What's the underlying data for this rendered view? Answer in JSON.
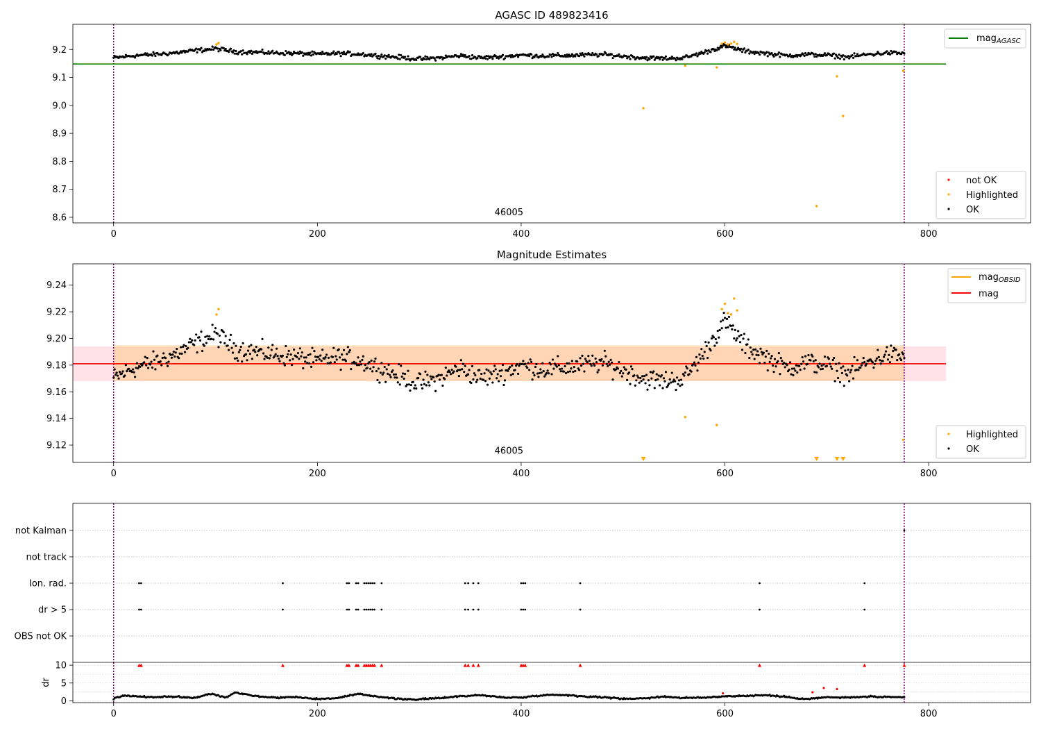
{
  "chart_data": [
    {
      "type": "scatter",
      "title": "AGASC ID 489823416",
      "xlim": [
        -40,
        900
      ],
      "ylim": [
        8.58,
        9.29
      ],
      "xticks": [
        0,
        200,
        400,
        600,
        800
      ],
      "yticks": [
        8.6,
        8.7,
        8.8,
        8.9,
        9.0,
        9.1,
        9.2
      ],
      "ytick_labels": [
        "8.6",
        "8.7",
        "8.8",
        "8.9",
        "9.0",
        "9.1",
        "9.2"
      ],
      "annotation": {
        "text": "46005",
        "x": 388,
        "y": 8.595
      },
      "vlines": [
        0,
        776
      ],
      "mag_agasc": {
        "y": 9.148,
        "x": [
          -40,
          817
        ]
      },
      "legend_lines": [
        {
          "label": "mag",
          "sub": "AGASC",
          "color": "#008000"
        }
      ],
      "legend_points": [
        {
          "label": "not OK",
          "color": "#ff0000"
        },
        {
          "label": "Highlighted",
          "color": "#ffa500"
        },
        {
          "label": "OK",
          "color": "#000000"
        }
      ],
      "series": [
        {
          "name": "Highlighted",
          "color": "#ffa500",
          "x": [
            101,
            103,
            520,
            561,
            592,
            597,
            600,
            603,
            606,
            609,
            612,
            690,
            710,
            716,
            775
          ],
          "y": [
            9.218,
            9.223,
            8.99,
            9.142,
            9.136,
            9.221,
            9.225,
            9.218,
            9.221,
            9.227,
            9.22,
            8.64,
            9.104,
            8.962,
            9.124
          ]
        },
        {
          "name": "OK",
          "color": "#000000",
          "trend_x": [
            0,
            20,
            40,
            60,
            80,
            100,
            120,
            140,
            160,
            180,
            200,
            220,
            240,
            260,
            280,
            300,
            320,
            340,
            360,
            380,
            400,
            420,
            440,
            460,
            480,
            500,
            520,
            540,
            560,
            580,
            600,
            620,
            640,
            660,
            680,
            700,
            720,
            740,
            760,
            776
          ],
          "trend_y": [
            9.17,
            9.178,
            9.182,
            9.188,
            9.196,
            9.203,
            9.192,
            9.19,
            9.188,
            9.186,
            9.183,
            9.186,
            9.184,
            9.178,
            9.172,
            9.166,
            9.17,
            9.178,
            9.17,
            9.174,
            9.18,
            9.177,
            9.178,
            9.18,
            9.182,
            9.176,
            9.17,
            9.168,
            9.17,
            9.19,
            9.213,
            9.194,
            9.186,
            9.178,
            9.182,
            9.18,
            9.173,
            9.182,
            9.188,
            9.186
          ],
          "spread": 0.012
        }
      ]
    },
    {
      "type": "scatter",
      "title": "Magnitude Estimates",
      "xlim": [
        -40,
        900
      ],
      "ylim": [
        9.107,
        9.256
      ],
      "xticks": [
        0,
        200,
        400,
        600,
        800
      ],
      "yticks": [
        9.12,
        9.14,
        9.16,
        9.18,
        9.2,
        9.22,
        9.24
      ],
      "ytick_labels": [
        "9.12",
        "9.14",
        "9.16",
        "9.18",
        "9.20",
        "9.22",
        "9.24"
      ],
      "annotation": {
        "text": "46005",
        "x": 388,
        "y": 9.111
      },
      "vlines": [
        0,
        776
      ],
      "mag": {
        "y": 9.181,
        "x": [
          -40,
          817
        ],
        "band": [
          9.168,
          9.194
        ]
      },
      "mag_obsid": {
        "y": 9.181,
        "x": [
          0,
          776
        ],
        "band": [
          9.168,
          9.195
        ]
      },
      "legend_lines": [
        {
          "label": "mag",
          "sub": "OBSID",
          "color": "#ffa500"
        },
        {
          "label": "mag",
          "sub": "",
          "color": "#ff0000"
        }
      ],
      "legend_points": [
        {
          "label": "Highlighted",
          "color": "#ffa500"
        },
        {
          "label": "OK",
          "color": "#000000"
        }
      ],
      "series": [
        {
          "name": "Highlighted",
          "color": "#ffa500",
          "x": [
            101,
            103,
            561,
            592,
            597,
            600,
            603,
            606,
            609,
            612,
            775
          ],
          "y": [
            9.218,
            9.222,
            9.141,
            9.135,
            9.222,
            9.226,
            9.219,
            9.218,
            9.23,
            9.221,
            9.124
          ]
        },
        {
          "name": "Highlighted (off-axis)",
          "color": "#ffa500",
          "marker": "triangle-down",
          "x": [
            520,
            690,
            710,
            716
          ],
          "y": [
            9.107,
            9.107,
            9.107,
            9.107
          ]
        },
        {
          "name": "OK",
          "color": "#000000",
          "trend_x": [
            0,
            20,
            40,
            60,
            80,
            100,
            120,
            140,
            160,
            180,
            200,
            220,
            240,
            260,
            280,
            300,
            320,
            340,
            360,
            380,
            400,
            420,
            440,
            460,
            480,
            500,
            520,
            540,
            560,
            580,
            600,
            620,
            640,
            660,
            680,
            700,
            720,
            740,
            760,
            776
          ],
          "trend_y": [
            9.17,
            9.178,
            9.182,
            9.188,
            9.196,
            9.203,
            9.192,
            9.19,
            9.188,
            9.186,
            9.183,
            9.186,
            9.184,
            9.178,
            9.172,
            9.166,
            9.17,
            9.178,
            9.17,
            9.174,
            9.18,
            9.177,
            9.178,
            9.18,
            9.182,
            9.176,
            9.17,
            9.168,
            9.17,
            9.19,
            9.213,
            9.194,
            9.186,
            9.178,
            9.182,
            9.18,
            9.173,
            9.182,
            9.188,
            9.186
          ],
          "spread": 0.012
        }
      ]
    },
    {
      "type": "scatter",
      "title": "",
      "xlim": [
        -40,
        900
      ],
      "categories": [
        "not Kalman",
        "not track",
        "Ion. rad.",
        "dr > 5",
        "OBS not OK"
      ],
      "vlines": [
        0,
        776
      ],
      "flag_x": [
        25,
        27,
        166,
        229,
        231,
        238,
        240,
        246,
        248,
        250,
        252,
        254,
        256,
        263,
        345,
        348,
        353,
        358,
        400,
        402,
        404,
        458,
        634,
        737
      ],
      "not_kalman_x": [
        776
      ]
    },
    {
      "type": "scatter",
      "title": "",
      "xlim": [
        -40,
        900
      ],
      "ylim": [
        -0.5,
        10.8
      ],
      "yticks": [
        0,
        5,
        10
      ],
      "ytick_labels": [
        "0",
        "5",
        "10"
      ],
      "ylabel": "dr",
      "xticks": [
        0,
        200,
        400,
        600,
        800
      ],
      "vlines": [
        0,
        776
      ],
      "clipped_x": [
        25,
        27,
        166,
        229,
        231,
        238,
        240,
        246,
        248,
        250,
        252,
        254,
        256,
        263,
        345,
        348,
        353,
        358,
        400,
        402,
        404,
        458,
        634,
        737,
        776
      ],
      "clipped_y": 10,
      "outliers": {
        "x": [
          598,
          686,
          697,
          710
        ],
        "y": [
          2.1,
          2.4,
          3.6,
          3.3
        ],
        "color": "#ff0000"
      },
      "trend_x": [
        0,
        10,
        20,
        40,
        60,
        80,
        95,
        110,
        120,
        140,
        160,
        180,
        200,
        220,
        240,
        260,
        280,
        300,
        320,
        340,
        360,
        380,
        400,
        420,
        440,
        460,
        480,
        500,
        520,
        540,
        560,
        580,
        600,
        620,
        640,
        660,
        680,
        700,
        720,
        740,
        760,
        776
      ],
      "trend_y": [
        0.6,
        1.5,
        1.3,
        1.0,
        1.2,
        0.8,
        2.0,
        1.0,
        2.4,
        1.3,
        0.9,
        1.1,
        0.5,
        0.8,
        1.9,
        1.2,
        0.5,
        0.4,
        0.8,
        1.3,
        1.6,
        1.0,
        0.9,
        1.6,
        1.7,
        1.3,
        1.0,
        0.6,
        0.7,
        1.2,
        0.8,
        0.9,
        1.3,
        1.4,
        1.6,
        1.1,
        0.5,
        1.0,
        0.9,
        1.2,
        1.0,
        1.0
      ],
      "spread": 0.35
    }
  ]
}
